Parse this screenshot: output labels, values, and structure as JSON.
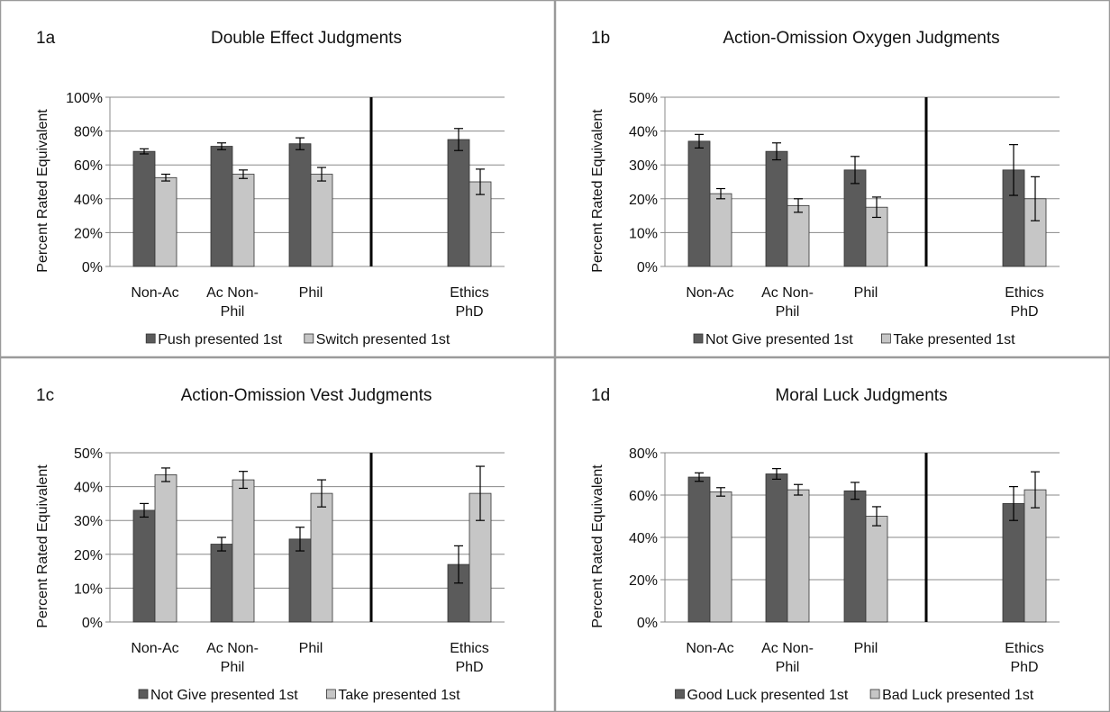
{
  "colors": {
    "series1": "#5b5b5b",
    "series2": "#c6c6c6",
    "grid": "#888888",
    "divider": "#000000",
    "panel_border": "#9a9a9a"
  },
  "chart_data": [
    {
      "id": "1a",
      "type": "bar",
      "title": "Double Effect Judgments",
      "ylabel": "Percent Rated Equivalent",
      "xlabel": "",
      "ylim": [
        0,
        100
      ],
      "y_ticks": [
        "0%",
        "20%",
        "40%",
        "60%",
        "80%",
        "100%"
      ],
      "grid": true,
      "categories": [
        [
          "Non-Ac"
        ],
        [
          "Ac Non-",
          "Phil"
        ],
        [
          "Phil"
        ],
        [
          "Ethics",
          "PhD"
        ]
      ],
      "series": [
        {
          "name": "Push presented 1st",
          "values": [
            68,
            71,
            72.5,
            75
          ],
          "errors": [
            1.5,
            2,
            3.5,
            6.5
          ]
        },
        {
          "name": "Switch presented 1st",
          "values": [
            52.5,
            54.5,
            54.5,
            50
          ],
          "errors": [
            2,
            2.5,
            4,
            7.5
          ]
        }
      ],
      "legend_position": "bottom"
    },
    {
      "id": "1b",
      "type": "bar",
      "title": "Action-Omission Oxygen Judgments",
      "ylabel": "Percent Rated Equivalent",
      "xlabel": "",
      "ylim": [
        0,
        50
      ],
      "y_ticks": [
        "0%",
        "10%",
        "20%",
        "30%",
        "40%",
        "50%"
      ],
      "grid": true,
      "categories": [
        [
          "Non-Ac"
        ],
        [
          "Ac Non-",
          "Phil"
        ],
        [
          "Phil"
        ],
        [
          "Ethics",
          "PhD"
        ]
      ],
      "series": [
        {
          "name": "Not Give presented 1st",
          "values": [
            37,
            34,
            28.5,
            28.5
          ],
          "errors": [
            2,
            2.5,
            4,
            7.5
          ]
        },
        {
          "name": "Take presented 1st",
          "values": [
            21.5,
            18,
            17.5,
            20
          ],
          "errors": [
            1.5,
            2,
            3,
            6.5
          ]
        }
      ],
      "legend_position": "bottom"
    },
    {
      "id": "1c",
      "type": "bar",
      "title": "Action-Omission Vest Judgments",
      "ylabel": "Percent Rated Equivalent",
      "xlabel": "",
      "ylim": [
        0,
        50
      ],
      "y_ticks": [
        "0%",
        "10%",
        "20%",
        "30%",
        "40%",
        "50%"
      ],
      "grid": true,
      "categories": [
        [
          "Non-Ac"
        ],
        [
          "Ac Non-",
          "Phil"
        ],
        [
          "Phil"
        ],
        [
          "Ethics",
          "PhD"
        ]
      ],
      "series": [
        {
          "name": "Not Give presented 1st",
          "values": [
            33,
            23,
            24.5,
            17
          ],
          "errors": [
            2,
            2,
            3.5,
            5.5
          ]
        },
        {
          "name": "Take presented 1st",
          "values": [
            43.5,
            42,
            38,
            38
          ],
          "errors": [
            2,
            2.5,
            4,
            8
          ]
        }
      ],
      "legend_position": "bottom"
    },
    {
      "id": "1d",
      "type": "bar",
      "title": "Moral Luck Judgments",
      "ylabel": "Percent Rated Equivalent",
      "xlabel": "",
      "ylim": [
        0,
        80
      ],
      "y_ticks": [
        "0%",
        "20%",
        "40%",
        "60%",
        "80%"
      ],
      "grid": true,
      "categories": [
        [
          "Non-Ac"
        ],
        [
          "Ac Non-",
          "Phil"
        ],
        [
          "Phil"
        ],
        [
          "Ethics",
          "PhD"
        ]
      ],
      "series": [
        {
          "name": "Good Luck presented 1st",
          "values": [
            68.5,
            70,
            62,
            56
          ],
          "errors": [
            2,
            2.5,
            4,
            8
          ]
        },
        {
          "name": "Bad Luck presented 1st",
          "values": [
            61.5,
            62.5,
            50,
            62.5
          ],
          "errors": [
            2,
            2.5,
            4.5,
            8.5
          ]
        }
      ],
      "legend_position": "bottom"
    }
  ]
}
